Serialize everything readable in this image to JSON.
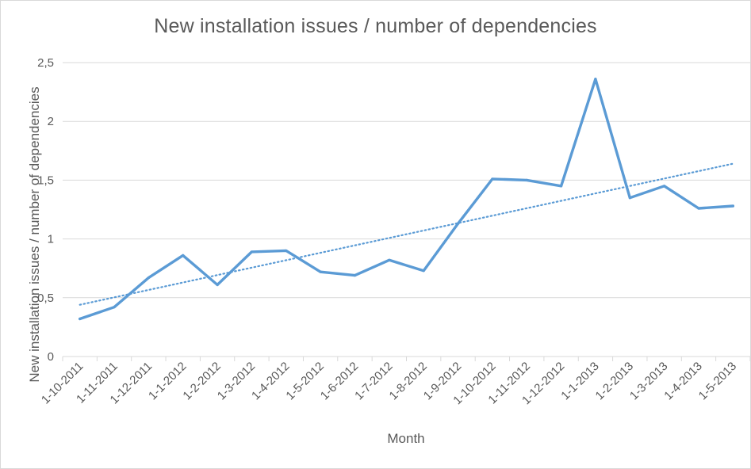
{
  "chart_data": {
    "type": "line",
    "title": "New installation issues / number of dependencies",
    "xlabel": "Month",
    "ylabel": "New installation issues / number of dependencies",
    "categories": [
      "1-10-2011",
      "1-11-2011",
      "1-12-2011",
      "1-1-2012",
      "1-2-2012",
      "1-3-2012",
      "1-4-2012",
      "1-5-2012",
      "1-6-2012",
      "1-7-2012",
      "1-8-2012",
      "1-9-2012",
      "1-10-2012",
      "1-11-2012",
      "1-12-2012",
      "1-1-2013",
      "1-2-2013",
      "1-3-2013",
      "1-4-2013",
      "1-5-2013"
    ],
    "series": [
      {
        "values": [
          0.32,
          0.42,
          0.67,
          0.86,
          0.61,
          0.89,
          0.9,
          0.72,
          0.69,
          0.82,
          0.73,
          1.13,
          1.51,
          1.5,
          1.45,
          2.36,
          1.35,
          1.45,
          1.26,
          1.28
        ],
        "color": "#5b9bd5"
      }
    ],
    "trendline": {
      "type": "linear",
      "start": 0.44,
      "end": 1.64,
      "style": "dotted",
      "color": "#5b9bd5"
    },
    "ylim": [
      0,
      2.5
    ],
    "yticks": [
      0,
      0.5,
      1,
      1.5,
      2,
      2.5
    ],
    "ytick_labels": [
      "0",
      "0,5",
      "1",
      "1,5",
      "2",
      "2,5"
    ],
    "grid": "horizontal",
    "gridline_color": "#d9d9d9",
    "axis_color": "#d9d9d9",
    "legend": "none"
  }
}
